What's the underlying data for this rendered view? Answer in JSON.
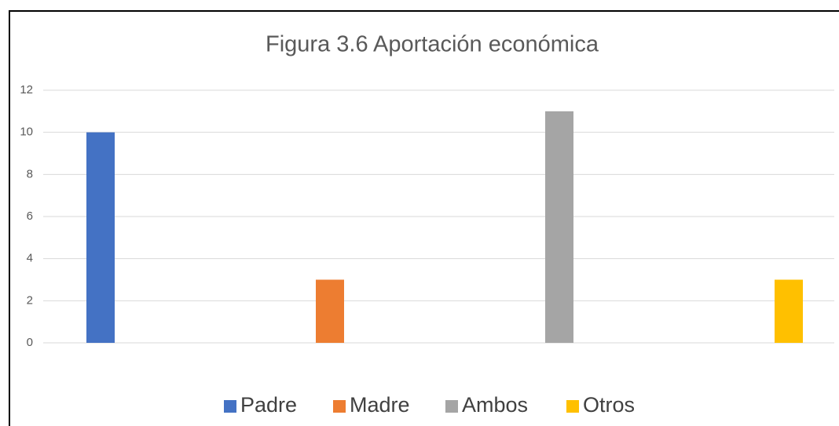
{
  "chart_data": {
    "type": "bar",
    "title": "Figura 3.6 Aportación económica",
    "series": [
      {
        "name": "Padre",
        "color": "#4472c4",
        "values": [
          10
        ]
      },
      {
        "name": "Madre",
        "color": "#ed7d31",
        "values": [
          3
        ]
      },
      {
        "name": "Ambos",
        "color": "#a5a5a5",
        "values": [
          11
        ]
      },
      {
        "name": "Otros",
        "color": "#ffc000",
        "values": [
          3
        ]
      }
    ],
    "ylim": [
      0,
      12
    ],
    "yticks": [
      0,
      2,
      4,
      6,
      8,
      10,
      12
    ],
    "grid": true,
    "legend": "bottom"
  }
}
